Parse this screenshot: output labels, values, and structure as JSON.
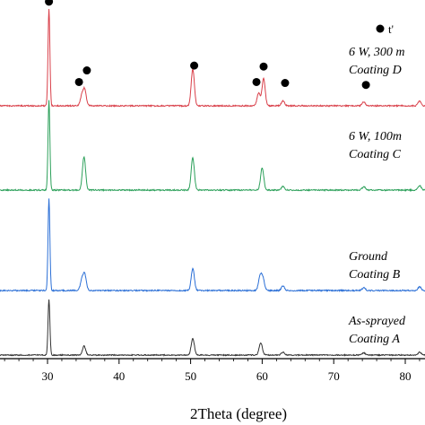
{
  "chart_data": {
    "type": "line",
    "title": "",
    "xlabel": "2Theta (degree)",
    "ylabel": "",
    "xlim": [
      20,
      83
    ],
    "x_ticks": [
      30,
      40,
      50,
      60,
      70,
      80
    ],
    "grid": false,
    "legend": {
      "placement": "top-right",
      "marker": "filled-circle",
      "label": "t'"
    },
    "series": [
      {
        "label_lines": [
          "6 W, 300 m",
          "Coating D"
        ],
        "color": "#d9404a",
        "baseline": 0,
        "peaks": [
          {
            "x": 30.2,
            "h": 1.0
          },
          {
            "x": 34.8,
            "h": 0.1
          },
          {
            "x": 35.2,
            "h": 0.16
          },
          {
            "x": 50.3,
            "h": 0.38
          },
          {
            "x": 59.5,
            "h": 0.13
          },
          {
            "x": 60.2,
            "h": 0.28
          },
          {
            "x": 62.9,
            "h": 0.05
          },
          {
            "x": 74.2,
            "h": 0.04
          },
          {
            "x": 82.0,
            "h": 0.05
          }
        ],
        "markers": [
          {
            "x": 30.2,
            "h": 1.02
          },
          {
            "x": 34.4,
            "h": 0.19
          },
          {
            "x": 35.5,
            "h": 0.31
          },
          {
            "x": 50.5,
            "h": 0.36
          },
          {
            "x": 59.2,
            "h": 0.19
          },
          {
            "x": 60.2,
            "h": 0.35
          },
          {
            "x": 63.2,
            "h": 0.18
          },
          {
            "x": 74.5,
            "h": 0.16
          }
        ]
      },
      {
        "label_lines": [
          "6 W, 100m",
          "Coating C"
        ],
        "color": "#2ca05a",
        "baseline": 1,
        "peaks": [
          {
            "x": 30.2,
            "h": 1.0
          },
          {
            "x": 35.1,
            "h": 0.37
          },
          {
            "x": 50.3,
            "h": 0.36
          },
          {
            "x": 60.0,
            "h": 0.25
          },
          {
            "x": 62.9,
            "h": 0.04
          },
          {
            "x": 74.2,
            "h": 0.04
          },
          {
            "x": 82.0,
            "h": 0.05
          }
        ]
      },
      {
        "label_lines": [
          "Ground",
          "Coating B"
        ],
        "color": "#2b6fd6",
        "baseline": 2,
        "peaks": [
          {
            "x": 30.2,
            "h": 1.0
          },
          {
            "x": 34.8,
            "h": 0.11
          },
          {
            "x": 35.2,
            "h": 0.17
          },
          {
            "x": 50.3,
            "h": 0.24
          },
          {
            "x": 59.7,
            "h": 0.15
          },
          {
            "x": 60.1,
            "h": 0.13
          },
          {
            "x": 62.9,
            "h": 0.05
          },
          {
            "x": 74.2,
            "h": 0.03
          },
          {
            "x": 82.0,
            "h": 0.04
          }
        ]
      },
      {
        "label_lines": [
          "As-sprayed",
          "Coating A"
        ],
        "color": "#333333",
        "baseline": 3,
        "peaks": [
          {
            "x": 30.2,
            "h": 1.0
          },
          {
            "x": 35.1,
            "h": 0.16
          },
          {
            "x": 50.3,
            "h": 0.3
          },
          {
            "x": 59.8,
            "h": 0.22
          },
          {
            "x": 62.9,
            "h": 0.05
          },
          {
            "x": 74.2,
            "h": 0.04
          },
          {
            "x": 82.0,
            "h": 0.05
          }
        ]
      }
    ]
  }
}
